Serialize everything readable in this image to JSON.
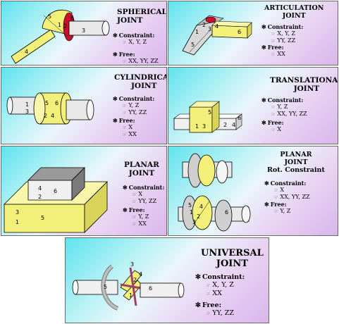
{
  "panels": [
    {
      "title": [
        "SPHERICAL",
        "JOINT"
      ],
      "constraint": {
        "heading": "Constraint:",
        "items": [
          "X, Y, Z"
        ]
      },
      "free": {
        "heading": "Free:",
        "items": [
          "XX, YY, ZZ"
        ]
      },
      "labels": [
        "5",
        "6",
        "1",
        "2",
        "3",
        "4"
      ]
    },
    {
      "title": [
        "ARTICULATION",
        "JOINT"
      ],
      "constraint": {
        "heading": "Constraint:",
        "items": [
          "X, Y, Z",
          "YY, ZZ"
        ]
      },
      "free": {
        "heading": "Free:",
        "items": [
          "XX"
        ]
      },
      "labels": [
        "1",
        "2",
        "3",
        "4",
        "5",
        "6"
      ]
    },
    {
      "title": [
        "CYLINDRICAL",
        "JOINT"
      ],
      "constraint": {
        "heading": "Constraint:",
        "items": [
          "Y, Z",
          "YY, ZZ"
        ]
      },
      "free": {
        "heading": "Free:",
        "items": [
          "X",
          "XX"
        ]
      },
      "labels": [
        "1",
        "3",
        "5",
        "6",
        "2",
        "4"
      ]
    },
    {
      "title": [
        "TRANSLATIONAL",
        "JOINT"
      ],
      "constraint": {
        "heading": "Constraint:",
        "items": [
          "Y, Z",
          "XX, YY, ZZ"
        ]
      },
      "free": {
        "heading": "Free:",
        "items": [
          "X"
        ]
      },
      "labels": [
        "5",
        "1",
        "3",
        "6",
        "2",
        "4"
      ]
    },
    {
      "title": [
        "PLANAR",
        "JOINT"
      ],
      "constraint": {
        "heading": "Constraint:",
        "items": [
          "X",
          "YY, ZZ"
        ]
      },
      "free": {
        "heading": "Free:",
        "items": [
          "Y, Z",
          "XX"
        ]
      },
      "labels": [
        "4",
        "6",
        "2",
        "3",
        "1",
        "5"
      ]
    },
    {
      "title": [
        "PLANAR",
        "JOINT",
        "Rot. Constraint"
      ],
      "constraint": {
        "heading": "Constraint:",
        "items": [
          "X",
          "XX, YY, ZZ"
        ]
      },
      "free": {
        "heading": "Free:",
        "items": [
          "Y, Z"
        ]
      },
      "labels": [
        "1",
        "2",
        "3",
        "4",
        "5",
        "6"
      ]
    },
    {
      "title": [
        "UNIVERSAL",
        "JOINT"
      ],
      "constraint": {
        "heading": "Constraint:",
        "items": [
          "X, Y, Z",
          "XX"
        ]
      },
      "free": {
        "heading": "Free:",
        "items": [
          "YY, ZZ"
        ]
      },
      "labels": [
        "5",
        "3",
        "2",
        "4",
        "1",
        "6"
      ]
    }
  ],
  "colors": {
    "yellow": "#f3f07a",
    "grey": "#d8d8d8",
    "dark": "#555555",
    "red": "#c8102e"
  },
  "icons": {
    "bullet": "asterisk-icon",
    "item": "pointing-hand-icon"
  }
}
